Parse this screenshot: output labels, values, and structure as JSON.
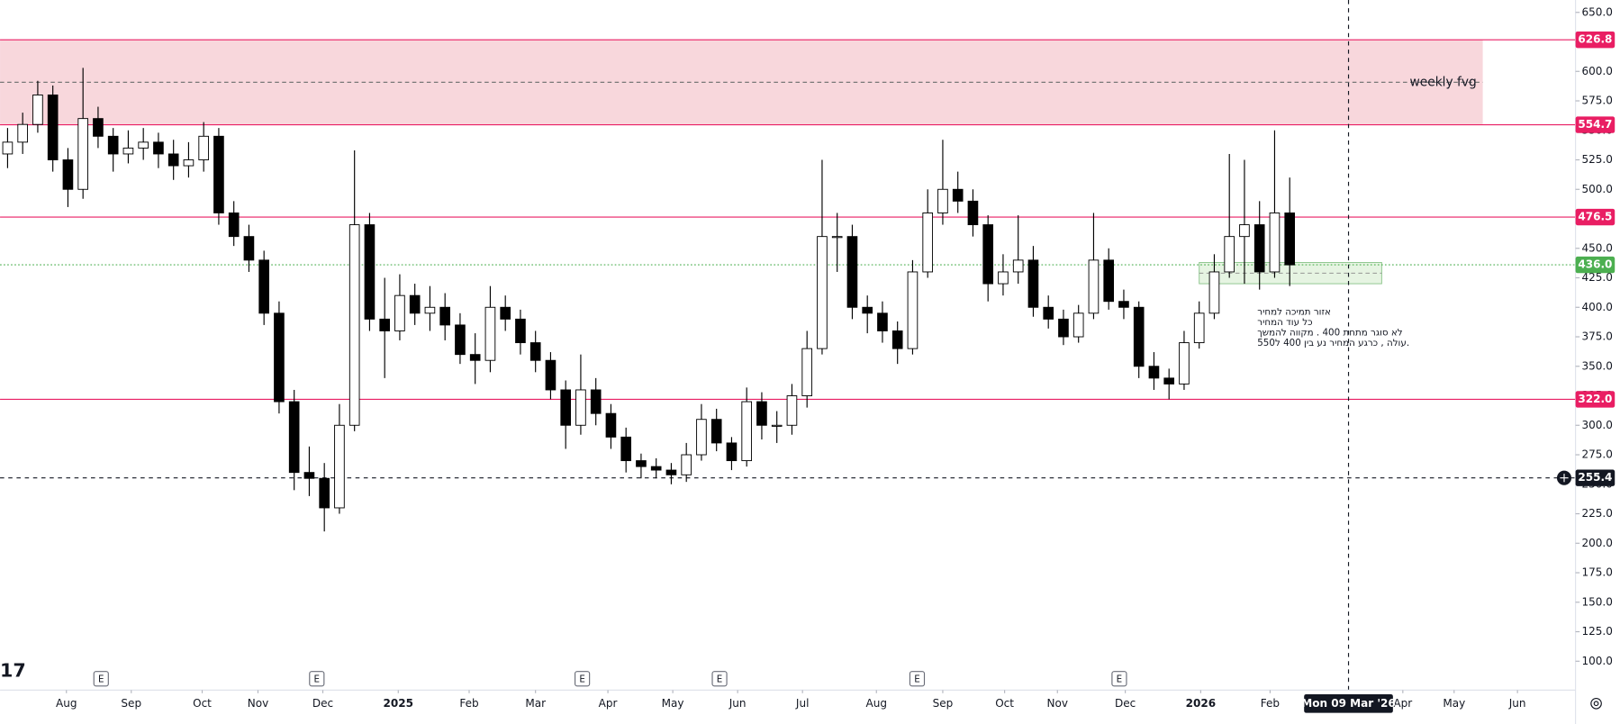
{
  "chart_data": {
    "type": "candlestick",
    "colors": {
      "up": "#ffffff",
      "down": "#000000",
      "wick": "#000000"
    },
    "xlim": [
      0,
      104.45
    ],
    "ylim": [
      75.5,
      660.5
    ],
    "open": [
      530,
      540,
      555,
      580,
      525,
      500,
      560,
      545,
      530,
      535,
      540,
      530,
      520,
      525,
      545,
      480,
      460,
      440,
      395,
      320,
      260,
      255,
      230,
      300,
      470,
      390,
      380,
      410,
      395,
      400,
      385,
      360,
      355,
      400,
      390,
      370,
      355,
      330,
      300,
      330,
      310,
      290,
      270,
      265,
      262,
      258,
      275,
      305,
      285,
      270,
      320,
      300,
      300,
      325,
      365,
      460,
      460,
      400,
      395,
      380,
      365,
      430,
      480,
      500,
      490,
      470,
      420,
      430,
      440,
      400,
      390,
      375,
      395,
      440,
      405,
      400,
      350,
      340,
      335,
      370,
      395,
      430,
      460,
      470,
      430,
      480
    ],
    "high": [
      552,
      565,
      592,
      588,
      535,
      603,
      570,
      552,
      550,
      552,
      548,
      542,
      540,
      557,
      552,
      490,
      470,
      448,
      405,
      330,
      282,
      268,
      318,
      533,
      480,
      425,
      428,
      420,
      418,
      412,
      395,
      378,
      418,
      410,
      398,
      380,
      362,
      338,
      360,
      340,
      318,
      298,
      276,
      272,
      268,
      285,
      318,
      314,
      290,
      332,
      328,
      312,
      335,
      380,
      525,
      480,
      470,
      410,
      405,
      388,
      440,
      500,
      542,
      515,
      500,
      478,
      445,
      478,
      452,
      410,
      398,
      402,
      480,
      450,
      415,
      405,
      362,
      348,
      380,
      405,
      445,
      530,
      525,
      490,
      550,
      510
    ],
    "low": [
      518,
      530,
      548,
      515,
      485,
      492,
      535,
      515,
      522,
      525,
      518,
      508,
      510,
      515,
      470,
      452,
      430,
      385,
      310,
      245,
      240,
      210,
      225,
      295,
      380,
      340,
      372,
      385,
      380,
      372,
      352,
      335,
      345,
      380,
      360,
      345,
      322,
      280,
      292,
      300,
      280,
      260,
      255,
      255,
      250,
      252,
      270,
      278,
      262,
      265,
      288,
      285,
      292,
      315,
      360,
      430,
      390,
      378,
      370,
      352,
      360,
      425,
      470,
      480,
      460,
      405,
      410,
      420,
      392,
      382,
      368,
      370,
      390,
      398,
      390,
      340,
      330,
      322,
      330,
      365,
      390,
      425,
      420,
      415,
      425,
      418
    ],
    "close": [
      540,
      555,
      580,
      525,
      500,
      560,
      545,
      530,
      535,
      540,
      530,
      520,
      525,
      545,
      480,
      460,
      440,
      395,
      320,
      260,
      255,
      230,
      300,
      470,
      390,
      380,
      410,
      395,
      400,
      385,
      360,
      355,
      400,
      390,
      370,
      355,
      330,
      300,
      330,
      310,
      290,
      270,
      265,
      262,
      258,
      275,
      305,
      285,
      270,
      320,
      300,
      300,
      325,
      365,
      460,
      460,
      400,
      395,
      380,
      365,
      430,
      480,
      500,
      490,
      470,
      420,
      430,
      440,
      400,
      390,
      375,
      395,
      440,
      405,
      400,
      350,
      340,
      335,
      370,
      395,
      430,
      460,
      470,
      430,
      480,
      436
    ],
    "yticks": [
      {
        "value": 100,
        "label": "100.0"
      },
      {
        "value": 125,
        "label": "125.0"
      },
      {
        "value": 150,
        "label": "150.0"
      },
      {
        "value": 175,
        "label": "175.0"
      },
      {
        "value": 200,
        "label": "200.0"
      },
      {
        "value": 225,
        "label": "225.0"
      },
      {
        "value": 250,
        "label": "250.0"
      },
      {
        "value": 275,
        "label": "275.0"
      },
      {
        "value": 300,
        "label": "300.0"
      },
      {
        "value": 325,
        "label": "325.0"
      },
      {
        "value": 350,
        "label": "350.0"
      },
      {
        "value": 375,
        "label": "375.0"
      },
      {
        "value": 400,
        "label": "400.0"
      },
      {
        "value": 425,
        "label": "425.0"
      },
      {
        "value": 450,
        "label": "450.0"
      },
      {
        "value": 475,
        "label": "475.0"
      },
      {
        "value": 500,
        "label": "500.0"
      },
      {
        "value": 525,
        "label": "525.0"
      },
      {
        "value": 550,
        "label": "550.0"
      },
      {
        "value": 575,
        "label": "575.0"
      },
      {
        "value": 600,
        "label": "600.0"
      },
      {
        "value": 625,
        "label": "625.0"
      },
      {
        "value": 650,
        "label": "650.0"
      }
    ],
    "xticks": [
      {
        "value": 4.4,
        "label": "Aug"
      },
      {
        "value": 8.7,
        "label": "Sep"
      },
      {
        "value": 13.4,
        "label": "Oct"
      },
      {
        "value": 17.1,
        "label": "Nov"
      },
      {
        "value": 21.4,
        "label": "Dec"
      },
      {
        "value": 26.4,
        "label": "2025"
      },
      {
        "value": 31.1,
        "label": "Feb"
      },
      {
        "value": 35.5,
        "label": "Mar"
      },
      {
        "value": 40.3,
        "label": "Apr"
      },
      {
        "value": 44.6,
        "label": "May"
      },
      {
        "value": 48.9,
        "label": "Jun"
      },
      {
        "value": 53.2,
        "label": "Jul"
      },
      {
        "value": 58.1,
        "label": "Aug"
      },
      {
        "value": 62.5,
        "label": "Sep"
      },
      {
        "value": 66.6,
        "label": "Oct"
      },
      {
        "value": 70.1,
        "label": "Nov"
      },
      {
        "value": 74.6,
        "label": "Dec"
      },
      {
        "value": 79.6,
        "label": "2026"
      },
      {
        "value": 84.2,
        "label": "Feb"
      },
      {
        "value": 93.0,
        "label": "Apr"
      },
      {
        "value": 96.4,
        "label": "May"
      },
      {
        "value": 100.6,
        "label": "Jun"
      }
    ],
    "levels": [
      {
        "value": 626.8,
        "label": "626.8",
        "color": "#e91e63"
      },
      {
        "value": 554.7,
        "label": "554.7",
        "color": "#e91e63"
      },
      {
        "value": 476.5,
        "label": "476.5",
        "color": "#e91e63"
      },
      {
        "value": 322,
        "label": "322.0",
        "color": "#e91e63"
      },
      {
        "value": 436,
        "label": "436.0",
        "color": "#4caf50",
        "dotted": true
      }
    ],
    "zone": {
      "label": "weekly fvg",
      "ylim": [
        554.7,
        626.8
      ],
      "x_end": 98.3,
      "color": "#f8d7dc"
    },
    "support_box": {
      "ylim": [
        420,
        438
      ],
      "xlim": [
        79.5,
        91.6
      ],
      "color": "#e6f4e2"
    },
    "crosshair": {
      "x": 89.4,
      "x_label": "Mon 09 Mar '26",
      "y": 255.4
    },
    "earnings": [
      {
        "x": 6.7,
        "label": "E"
      },
      {
        "x": 21.0,
        "label": "E"
      },
      {
        "x": 38.6,
        "label": "E"
      },
      {
        "x": 47.7,
        "label": "E"
      },
      {
        "x": 60.8,
        "label": "E"
      },
      {
        "x": 74.2,
        "label": "E"
      }
    ],
    "annotation": [
      "אזור תמיכה למחיר",
      "כל עוד המחיר",
      "לא סוגר מתחת 400 . מקווה להמשך",
      "עולה , כרגע המחיר נע בין 400 ל550."
    ]
  }
}
